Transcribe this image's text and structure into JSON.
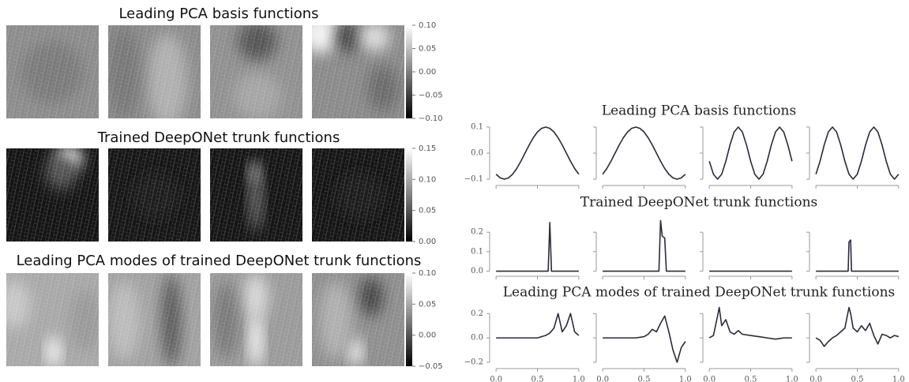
{
  "left_figure": {
    "rows": [
      {
        "title": "Leading PCA basis functions",
        "clim": [
          -0.1,
          0.1
        ],
        "colorbar_ticks": [
          {
            "value": 0.1,
            "label": "0.10"
          },
          {
            "value": 0.05,
            "label": "0.05"
          },
          {
            "value": 0,
            "label": "0.00"
          },
          {
            "value": -0.05,
            "label": "−0.05"
          },
          {
            "value": -0.1,
            "label": "−0.10"
          }
        ]
      },
      {
        "title": "Trained DeepONet trunk functions",
        "clim": [
          0,
          0.15
        ],
        "colorbar_ticks": [
          {
            "value": 0.15,
            "label": "0.15"
          },
          {
            "value": 0.1,
            "label": "0.10"
          },
          {
            "value": 0.05,
            "label": "0.05"
          },
          {
            "value": 0,
            "label": "0.00"
          }
        ]
      },
      {
        "title": "Leading PCA modes of trained DeepONet trunk functions",
        "clim": [
          -0.05,
          0.1
        ],
        "colorbar_ticks": [
          {
            "value": 0.1,
            "label": "0.10"
          },
          {
            "value": 0.05,
            "label": "0.05"
          },
          {
            "value": 0,
            "label": "0.00"
          },
          {
            "value": -0.05,
            "label": "−0.05"
          }
        ]
      }
    ]
  },
  "chart_data": [
    {
      "type": "line",
      "title": "Leading PCA basis functions",
      "xlim": [
        -0.03,
        1.03
      ],
      "xticks": [
        0,
        0.5,
        1
      ],
      "ylim": [
        -0.112,
        0.112
      ],
      "yticks": [
        {
          "value": -0.1,
          "label": "−0.1"
        },
        {
          "value": 0,
          "label": "0.0"
        },
        {
          "value": 0.1,
          "label": "0.1"
        }
      ],
      "series": [
        {
          "color": "#2b2b3b",
          "x": [
            0,
            0.05,
            0.1,
            0.15,
            0.2,
            0.25,
            0.3,
            0.35,
            0.4,
            0.45,
            0.5,
            0.55,
            0.6,
            0.65,
            0.7,
            0.75,
            0.8,
            0.85,
            0.9,
            0.95,
            1
          ],
          "values": [
            -0.081,
            -0.095,
            -0.1,
            -0.095,
            -0.081,
            -0.059,
            -0.031,
            0,
            0.031,
            0.059,
            0.081,
            0.095,
            0.1,
            0.095,
            0.081,
            0.059,
            0.031,
            0,
            -0.031,
            -0.059,
            -0.081
          ]
        },
        {
          "color": "#2b2b3b",
          "x": [
            0,
            0.05,
            0.1,
            0.15,
            0.2,
            0.25,
            0.3,
            0.35,
            0.4,
            0.45,
            0.5,
            0.55,
            0.6,
            0.65,
            0.7,
            0.75,
            0.8,
            0.85,
            0.9,
            0.95,
            1
          ],
          "values": [
            -0.081,
            -0.059,
            -0.031,
            0,
            0.031,
            0.059,
            0.081,
            0.095,
            0.1,
            0.095,
            0.081,
            0.059,
            0.031,
            0,
            -0.031,
            -0.059,
            -0.081,
            -0.095,
            -0.1,
            -0.095,
            -0.081
          ]
        },
        {
          "color": "#2b2b3b",
          "x": [
            0,
            0.05,
            0.1,
            0.15,
            0.2,
            0.25,
            0.3,
            0.35,
            0.4,
            0.45,
            0.5,
            0.55,
            0.6,
            0.65,
            0.7,
            0.75,
            0.8,
            0.85,
            0.9,
            0.95,
            1
          ],
          "values": [
            -0.031,
            -0.081,
            -0.1,
            -0.081,
            -0.031,
            0.031,
            0.081,
            0.1,
            0.081,
            0.031,
            -0.031,
            -0.081,
            -0.1,
            -0.081,
            -0.031,
            0.031,
            0.081,
            0.1,
            0.081,
            0.031,
            -0.031
          ]
        },
        {
          "color": "#2b2b3b",
          "x": [
            0,
            0.05,
            0.1,
            0.15,
            0.2,
            0.25,
            0.3,
            0.35,
            0.4,
            0.45,
            0.5,
            0.55,
            0.6,
            0.65,
            0.7,
            0.75,
            0.8,
            0.85,
            0.9,
            0.95,
            1
          ],
          "values": [
            -0.081,
            -0.031,
            0.031,
            0.081,
            0.1,
            0.081,
            0.031,
            -0.031,
            -0.081,
            -0.1,
            -0.081,
            -0.031,
            0.031,
            0.081,
            0.1,
            0.081,
            0.031,
            -0.031,
            -0.081,
            -0.1,
            -0.081
          ]
        }
      ]
    },
    {
      "type": "line",
      "title": "Trained DeepONet trunk functions",
      "xlim": [
        -0.03,
        1.03
      ],
      "xticks": [
        0,
        0.5,
        1
      ],
      "ylim": [
        -0.01,
        0.29
      ],
      "yticks": [
        {
          "value": 0,
          "label": "0.0"
        },
        {
          "value": 0.1,
          "label": "0.1"
        },
        {
          "value": 0.2,
          "label": "0.2"
        }
      ],
      "series": [
        {
          "color": "#2b2b3b",
          "x": [
            0,
            0.63,
            0.65,
            0.67,
            1
          ],
          "values": [
            0,
            0,
            0.25,
            0,
            0
          ]
        },
        {
          "color": "#2b2b3b",
          "x": [
            0,
            0.68,
            0.7,
            0.72,
            0.75,
            0.77,
            1
          ],
          "values": [
            0,
            0,
            0.26,
            0.18,
            0.17,
            0,
            0
          ]
        },
        {
          "color": "#2b2b3b",
          "x": [
            0,
            1
          ],
          "values": [
            0,
            0
          ]
        },
        {
          "color": "#2b2b3b",
          "x": [
            0,
            0.39,
            0.4,
            0.42,
            0.43,
            1
          ],
          "values": [
            0,
            0,
            0.15,
            0.16,
            0,
            0
          ]
        }
      ]
    },
    {
      "type": "line",
      "title": "Leading PCA modes of trained DeepONet trunk functions",
      "xlim": [
        -0.03,
        1.03
      ],
      "xticks": [
        {
          "value": 0,
          "label": "0.0"
        },
        {
          "value": 0.5,
          "label": "0.5"
        },
        {
          "value": 1,
          "label": "1.0"
        }
      ],
      "ylim": [
        -0.226,
        0.26
      ],
      "yticks": [
        {
          "value": -0.2,
          "label": "−0.2"
        },
        {
          "value": 0,
          "label": "0.0"
        },
        {
          "value": 0.2,
          "label": "0.2"
        }
      ],
      "series": [
        {
          "color": "#2b2b3b",
          "x": [
            0,
            0.5,
            0.6,
            0.65,
            0.7,
            0.75,
            0.8,
            0.85,
            0.9,
            0.95,
            1
          ],
          "values": [
            0,
            0,
            0.02,
            0.04,
            0.08,
            0.2,
            0.05,
            0.1,
            0.2,
            0.05,
            0.02
          ]
        },
        {
          "color": "#2b2b3b",
          "x": [
            0,
            0.4,
            0.5,
            0.55,
            0.6,
            0.65,
            0.7,
            0.75,
            0.8,
            0.85,
            0.9,
            0.95,
            1
          ],
          "values": [
            0,
            0,
            0.01,
            0.03,
            0.07,
            0.05,
            0.12,
            0.18,
            0.05,
            -0.1,
            -0.2,
            -0.08,
            -0.03
          ]
        },
        {
          "color": "#2b2b3b",
          "x": [
            0,
            0.05,
            0.1,
            0.12,
            0.15,
            0.2,
            0.25,
            0.3,
            0.35,
            0.4,
            0.5,
            0.6,
            0.7,
            0.8,
            0.9,
            1
          ],
          "values": [
            0,
            0.02,
            0.18,
            0.25,
            0.1,
            0.15,
            0.05,
            0.03,
            0.06,
            0.03,
            0.02,
            0.01,
            0,
            -0.01,
            0,
            0
          ]
        },
        {
          "color": "#2b2b3b",
          "x": [
            0,
            0.05,
            0.1,
            0.15,
            0.2,
            0.25,
            0.3,
            0.35,
            0.4,
            0.42,
            0.45,
            0.5,
            0.55,
            0.6,
            0.65,
            0.7,
            0.75,
            0.8,
            0.85,
            0.9,
            0.95,
            1
          ],
          "values": [
            0,
            -0.02,
            -0.07,
            -0.03,
            0,
            0.02,
            0.05,
            0.08,
            0.25,
            0.2,
            0.08,
            0.05,
            0.1,
            0.06,
            0.12,
            0.02,
            -0.05,
            0.03,
            0.02,
            0,
            0.02,
            0.01
          ]
        }
      ]
    }
  ]
}
